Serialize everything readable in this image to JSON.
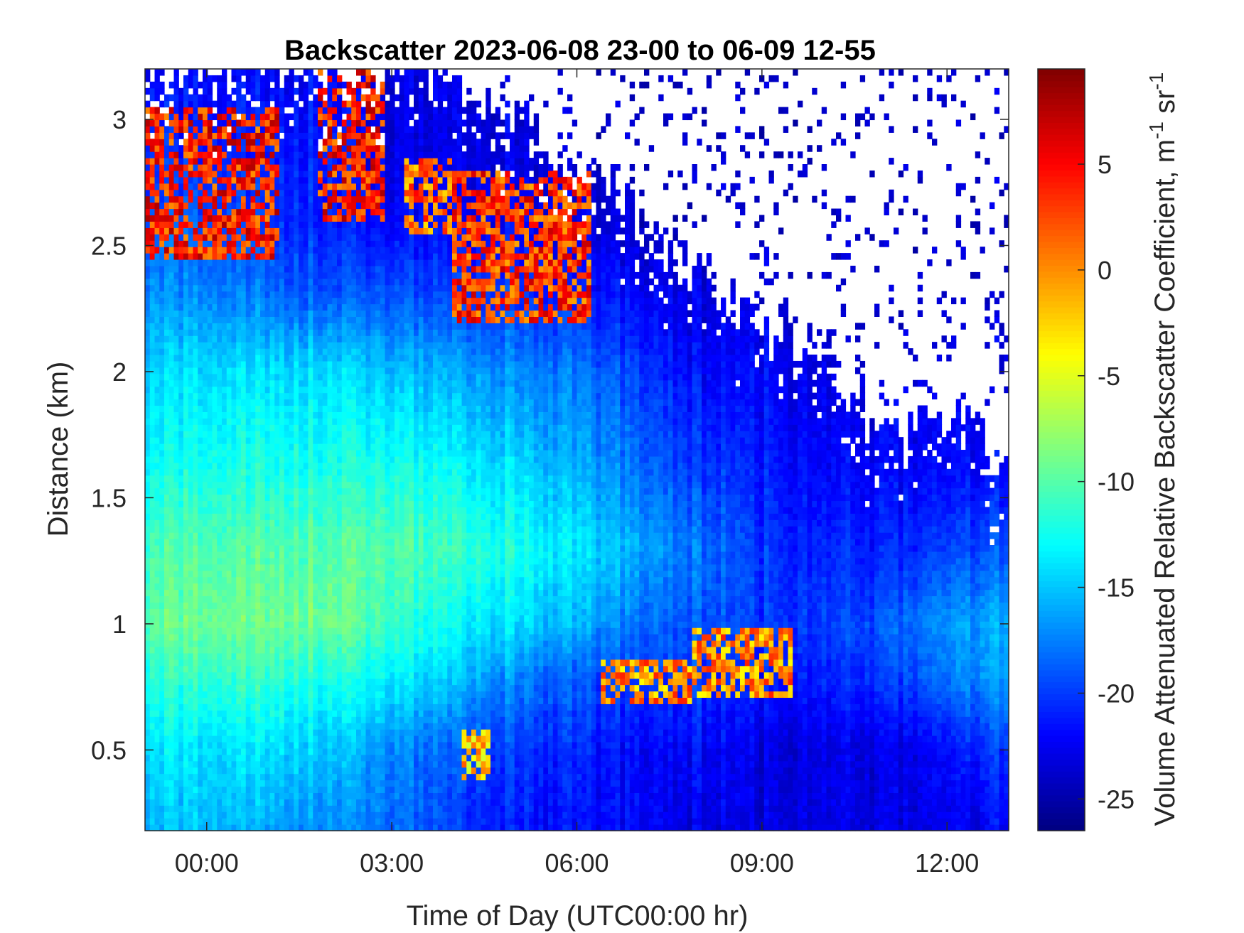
{
  "chart_data": {
    "type": "heatmap",
    "title": "Backscatter 2023-06-08 23-00 to 06-09 12-55",
    "xlabel": "Time of Day (UTC00:00 hr)",
    "ylabel": "Distance (km)",
    "colorbar_label": "Volume Attenuated Relative Backscatter Coefficient, m",
    "colorbar_label_sup1": "-1",
    "colorbar_label_mid": " sr",
    "colorbar_label_sup2": "-1",
    "colormap": "jet",
    "x_range_hours": [
      -1.0,
      13.0
    ],
    "y_range_km": [
      0.18,
      3.2
    ],
    "c_range": [
      -26.5,
      9.5
    ],
    "x_ticks": [
      {
        "value": 0,
        "label": "00:00"
      },
      {
        "value": 3,
        "label": "03:00"
      },
      {
        "value": 6,
        "label": "06:00"
      },
      {
        "value": 9,
        "label": "09:00"
      },
      {
        "value": 12,
        "label": "12:00"
      }
    ],
    "y_ticks": [
      {
        "value": 0.5,
        "label": "0.5"
      },
      {
        "value": 1.0,
        "label": "1"
      },
      {
        "value": 1.5,
        "label": "1.5"
      },
      {
        "value": 2.0,
        "label": "2"
      },
      {
        "value": 2.5,
        "label": "2.5"
      },
      {
        "value": 3.0,
        "label": "3"
      }
    ],
    "c_ticks": [
      {
        "value": -25,
        "label": "-25"
      },
      {
        "value": -20,
        "label": "-20"
      },
      {
        "value": -15,
        "label": "-15"
      },
      {
        "value": -10,
        "label": "-10"
      },
      {
        "value": -5,
        "label": "-5"
      },
      {
        "value": 0,
        "label": "0"
      },
      {
        "value": 5,
        "label": "5"
      }
    ],
    "field": {
      "description_note": "approximate backscatter field (dB) sampled on a time x height grid",
      "times_hours": [
        -1.0,
        0.0,
        1.0,
        2.0,
        3.0,
        4.0,
        5.0,
        6.0,
        7.0,
        8.0,
        9.0,
        10.0,
        11.0,
        12.0,
        13.0
      ],
      "heights_km": [
        0.2,
        0.5,
        0.8,
        1.0,
        1.3,
        1.6,
        2.0,
        2.3,
        2.6,
        2.9,
        3.2
      ],
      "values": [
        [
          -16,
          -14,
          -12,
          -10,
          -11,
          -13,
          -15,
          -17,
          -19,
          -21,
          -22
        ],
        [
          -15,
          -14,
          -11,
          -9,
          -10,
          -12,
          -14,
          -17,
          -19,
          -21,
          -22
        ],
        [
          -16,
          -14,
          -11,
          -9,
          -10,
          -12,
          -14,
          -18,
          -20,
          -21,
          -22
        ],
        [
          -17,
          -15,
          -12,
          -9,
          -10,
          -12,
          -14,
          -19,
          -21,
          -21,
          -22
        ],
        [
          -18,
          -17,
          -13,
          -11,
          -10,
          -12,
          -15,
          -19,
          -22,
          -23,
          -23
        ],
        [
          -20,
          -19,
          -15,
          -13,
          -11,
          -13,
          -16,
          -20,
          -22,
          -23,
          -23
        ],
        [
          -21,
          -20,
          -17,
          -14,
          -12,
          -14,
          -17,
          -20,
          -22,
          -23,
          -23
        ],
        [
          -22,
          -21,
          -19,
          -16,
          -14,
          -16,
          -18,
          -21,
          -23,
          -24,
          -24
        ],
        [
          -22,
          -22,
          -20,
          -18,
          -16,
          -18,
          -20,
          -22,
          -24,
          -24,
          -24
        ],
        [
          -23,
          -22,
          -20,
          -19,
          -18,
          -20,
          -22,
          -23,
          -24,
          -24,
          -24
        ],
        [
          -23,
          -23,
          -21,
          -20,
          -20,
          -21,
          -22,
          -23,
          -24,
          -24,
          -24
        ],
        [
          -23,
          -23,
          -21,
          -20,
          -21,
          -22,
          -23,
          -24,
          -24,
          -24,
          -24
        ],
        [
          -23,
          -23,
          -20,
          -19,
          -21,
          -22,
          -23,
          -24,
          -24,
          -24,
          -24
        ],
        [
          -23,
          -22,
          -18,
          -17,
          -20,
          -22,
          -23,
          -24,
          -24,
          -24,
          -24
        ],
        [
          -22,
          -20,
          -16,
          -16,
          -19,
          -22,
          -23,
          -24,
          -24,
          -24,
          -24
        ]
      ],
      "cloud_top_km": [
        [
          -1.0,
          3.2
        ],
        [
          0.0,
          3.2
        ],
        [
          1.0,
          3.2
        ],
        [
          2.0,
          3.2
        ],
        [
          3.0,
          3.2
        ],
        [
          4.0,
          3.2
        ],
        [
          5.0,
          3.0
        ],
        [
          6.0,
          2.8
        ],
        [
          7.0,
          2.6
        ],
        [
          8.0,
          2.35
        ],
        [
          9.0,
          2.2
        ],
        [
          10.0,
          2.1
        ],
        [
          11.0,
          1.7
        ],
        [
          12.0,
          1.85
        ],
        [
          13.0,
          1.6
        ]
      ],
      "elevated_layers": [
        {
          "t_start": -1.0,
          "t_end": 1.2,
          "h_bottom": 2.45,
          "h_top": 3.05,
          "value": 4
        },
        {
          "t_start": 1.8,
          "t_end": 2.9,
          "h_bottom": 2.6,
          "h_top": 3.2,
          "value": 4
        },
        {
          "t_start": 3.2,
          "t_end": 4.0,
          "h_bottom": 2.55,
          "h_top": 2.85,
          "value": 1
        },
        {
          "t_start": 4.0,
          "t_end": 6.2,
          "h_bottom": 2.2,
          "h_top": 2.8,
          "value": 3
        },
        {
          "t_start": 6.4,
          "t_end": 7.9,
          "h_bottom": 0.68,
          "h_top": 0.85,
          "value": 0
        },
        {
          "t_start": 7.9,
          "t_end": 9.5,
          "h_bottom": 0.72,
          "h_top": 0.98,
          "value": 0
        },
        {
          "t_start": 4.1,
          "t_end": 4.6,
          "h_bottom": 0.38,
          "h_top": 0.58,
          "value": -2
        }
      ]
    }
  }
}
